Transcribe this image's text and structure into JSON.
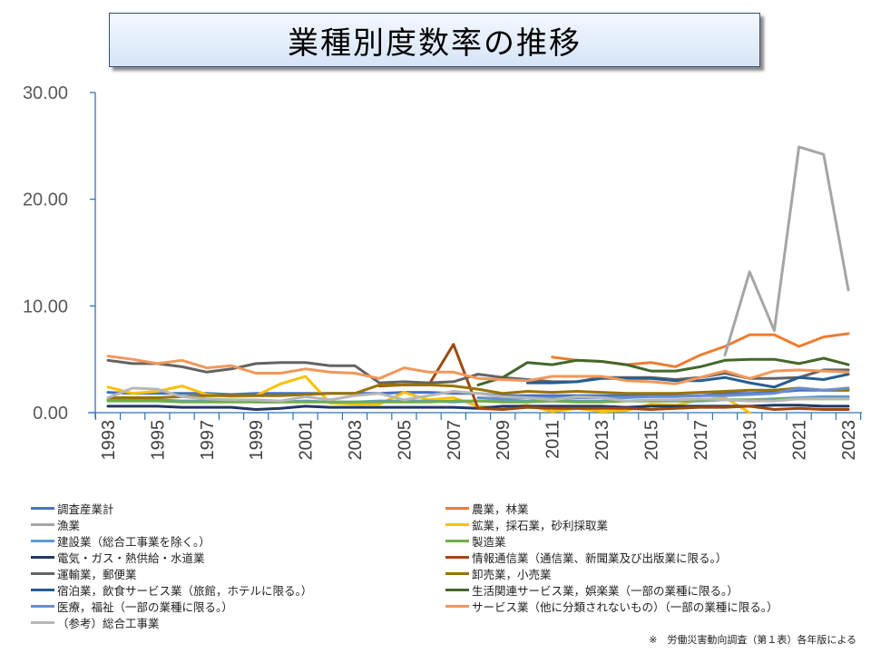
{
  "chart_data": {
    "type": "line",
    "title": "業種別度数率の推移",
    "xlabel": "",
    "ylabel": "",
    "ylim": [
      0,
      30
    ],
    "yticks": [
      "0.00",
      "10.00",
      "20.00",
      "30.00"
    ],
    "x": [
      1993,
      1994,
      1995,
      1996,
      1997,
      1998,
      1999,
      2000,
      2001,
      2002,
      2003,
      2004,
      2005,
      2006,
      2007,
      2008,
      2009,
      2010,
      2011,
      2012,
      2013,
      2014,
      2015,
      2016,
      2017,
      2018,
      2019,
      2020,
      2021,
      2022,
      2023
    ],
    "xtick_labels": [
      "1993",
      "1995",
      "1997",
      "1999",
      "2001",
      "2003",
      "2005",
      "2007",
      "2009",
      "2011",
      "2013",
      "2015",
      "2017",
      "2019",
      "2021",
      "2023"
    ],
    "grid": false,
    "legend_position": "bottom",
    "series": [
      {
        "name": "調査産業計",
        "color": "#4472c4",
        "values": [
          1.9,
          1.8,
          1.8,
          1.8,
          1.8,
          1.7,
          1.8,
          1.8,
          1.8,
          1.8,
          1.8,
          1.8,
          1.9,
          1.9,
          1.8,
          1.8,
          1.6,
          1.6,
          1.6,
          1.6,
          1.6,
          1.6,
          1.6,
          1.6,
          1.6,
          1.8,
          1.8,
          1.9,
          2.1,
          2.1,
          2.1
        ]
      },
      {
        "name": "農業，林業",
        "color": "#ed7d31",
        "values": [
          null,
          null,
          null,
          null,
          null,
          null,
          null,
          null,
          null,
          null,
          null,
          null,
          null,
          null,
          null,
          null,
          null,
          null,
          5.2,
          4.9,
          4.8,
          4.5,
          4.7,
          4.3,
          5.4,
          6.2,
          7.3,
          7.3,
          6.2,
          7.1,
          7.4
        ]
      },
      {
        "name": "漁業",
        "color": "#a5a5a5",
        "values": [
          null,
          null,
          null,
          null,
          null,
          null,
          null,
          null,
          null,
          null,
          null,
          null,
          null,
          null,
          null,
          null,
          null,
          null,
          null,
          null,
          null,
          null,
          null,
          null,
          null,
          5.4,
          13.2,
          7.7,
          24.9,
          24.2,
          11.5
        ]
      },
      {
        "name": "鉱業，採石業，砂利採取業",
        "color": "#ffc000",
        "values": [
          2.4,
          1.8,
          2.0,
          2.5,
          1.7,
          1.5,
          1.6,
          2.7,
          3.4,
          0.9,
          0.8,
          0.8,
          1.9,
          1.2,
          1.4,
          0.6,
          0.4,
          0.7,
          0.1,
          0.4,
          0.1,
          0.2,
          0.8,
          0.7,
          1.2,
          1.4,
          0.0,
          null,
          null,
          null,
          null
        ]
      },
      {
        "name": "建設業（総合工事業を除く。）",
        "color": "#5b9bd5",
        "values": [
          1.2,
          1.2,
          1.2,
          1.1,
          1.1,
          1.1,
          1.0,
          1.0,
          1.1,
          1.0,
          1.0,
          1.1,
          1.1,
          1.1,
          1.0,
          1.1,
          1.1,
          1.1,
          1.2,
          1.1,
          1.1,
          1.1,
          1.1,
          1.1,
          1.1,
          1.2,
          1.2,
          1.3,
          1.4,
          1.5,
          1.5
        ]
      },
      {
        "name": "製造業",
        "color": "#70ad47",
        "values": [
          1.1,
          1.1,
          1.1,
          1.0,
          1.0,
          1.0,
          1.0,
          1.0,
          1.0,
          1.0,
          1.0,
          1.0,
          1.0,
          1.0,
          1.1,
          1.1,
          1.0,
          1.0,
          1.1,
          1.0,
          1.0,
          1.1,
          1.1,
          1.1,
          1.2,
          1.2,
          1.2,
          1.2,
          1.3,
          1.3,
          1.3
        ]
      },
      {
        "name": "電気・ガス・熱供給・水道業",
        "color": "#203864",
        "values": [
          0.6,
          0.6,
          0.6,
          0.5,
          0.5,
          0.5,
          0.3,
          0.4,
          0.6,
          0.5,
          0.5,
          0.5,
          0.5,
          0.5,
          0.5,
          0.4,
          0.6,
          0.6,
          0.6,
          0.6,
          0.6,
          0.5,
          0.6,
          0.6,
          0.6,
          0.6,
          0.6,
          0.7,
          0.7,
          0.6,
          0.6
        ]
      },
      {
        "name": "情報通信業（通信業、新聞業及び出版業に限る。）",
        "color": "#9e480e",
        "values": [
          null,
          null,
          null,
          null,
          null,
          null,
          null,
          null,
          null,
          null,
          null,
          2.5,
          2.6,
          2.6,
          6.4,
          0.4,
          0.3,
          0.5,
          0.4,
          0.4,
          0.4,
          0.4,
          0.3,
          0.4,
          0.5,
          0.5,
          0.6,
          0.3,
          0.4,
          0.3,
          0.3
        ]
      },
      {
        "name": "運輸業，郵便業",
        "color": "#636363",
        "values": [
          4.9,
          4.6,
          4.6,
          4.3,
          3.8,
          4.1,
          4.6,
          4.7,
          4.7,
          4.4,
          4.4,
          2.8,
          2.9,
          2.8,
          2.9,
          3.6,
          3.3,
          3.1,
          2.9,
          2.9,
          3.3,
          3.3,
          3.3,
          3.1,
          3.3,
          3.7,
          3.2,
          3.2,
          3.3,
          4.0,
          4.0
        ]
      },
      {
        "name": "卸売業，小売業",
        "color": "#997300",
        "values": [
          1.4,
          1.4,
          1.4,
          1.5,
          1.6,
          1.6,
          1.6,
          1.6,
          1.7,
          1.8,
          1.8,
          2.6,
          2.6,
          2.6,
          2.5,
          2.2,
          1.8,
          2.0,
          1.9,
          2.0,
          1.9,
          1.8,
          1.8,
          1.8,
          1.9,
          2.0,
          2.1,
          2.1,
          2.3,
          2.1,
          2.1
        ]
      },
      {
        "name": "宿泊業，飲食サービス業（旅館，ホテルに限る。）",
        "color": "#255e91",
        "values": [
          null,
          null,
          null,
          null,
          null,
          null,
          null,
          null,
          null,
          null,
          null,
          null,
          null,
          null,
          null,
          null,
          null,
          2.8,
          2.8,
          2.9,
          3.2,
          3.2,
          3.2,
          3.0,
          3.0,
          3.3,
          2.8,
          2.4,
          3.3,
          3.1,
          3.6
        ]
      },
      {
        "name": "生活関連サービス業，娯楽業（一部の業種に限る。）",
        "color": "#43682b",
        "values": [
          null,
          null,
          null,
          null,
          null,
          null,
          null,
          null,
          null,
          null,
          null,
          null,
          null,
          null,
          null,
          2.6,
          3.3,
          4.7,
          4.5,
          4.9,
          4.8,
          4.5,
          3.9,
          3.9,
          4.3,
          4.9,
          5.0,
          5.0,
          4.6,
          5.1,
          4.5
        ]
      },
      {
        "name": "医療，福祉（一部の業種に限る。）",
        "color": "#698ed0",
        "values": [
          null,
          null,
          null,
          null,
          null,
          null,
          null,
          null,
          null,
          null,
          null,
          null,
          null,
          null,
          null,
          1.4,
          1.3,
          1.4,
          1.4,
          1.4,
          1.4,
          1.4,
          1.5,
          1.5,
          1.6,
          1.6,
          1.7,
          1.8,
          2.3,
          2.1,
          2.3
        ]
      },
      {
        "name": "サービス業（他に分類されないもの）（一部の業種に限る。）",
        "color": "#f1975a",
        "values": [
          5.3,
          5.0,
          4.6,
          4.9,
          4.2,
          4.4,
          3.7,
          3.7,
          4.1,
          3.8,
          3.7,
          3.2,
          4.2,
          3.8,
          3.8,
          3.2,
          3.1,
          3.0,
          3.4,
          3.4,
          3.4,
          3.0,
          2.9,
          2.7,
          3.3,
          3.9,
          3.2,
          3.9,
          4.0,
          3.9,
          3.8
        ]
      },
      {
        "name": "（参考）総合工事業",
        "color": "#b7b7b7",
        "values": [
          1.4,
          2.3,
          2.2,
          1.5,
          1.3,
          1.2,
          1.2,
          1.1,
          1.5,
          1.2,
          1.6,
          1.8,
          1.2,
          1.6,
          2.0,
          1.8,
          1.5,
          1.4,
          1.2,
          1.5,
          1.4,
          1.1,
          1.2,
          1.2,
          1.3,
          1.2,
          1.1,
          1.1,
          1.3,
          1.3,
          1.3
        ]
      }
    ],
    "source_note": "※　労働災害動向調査（第１表）各年版による"
  }
}
